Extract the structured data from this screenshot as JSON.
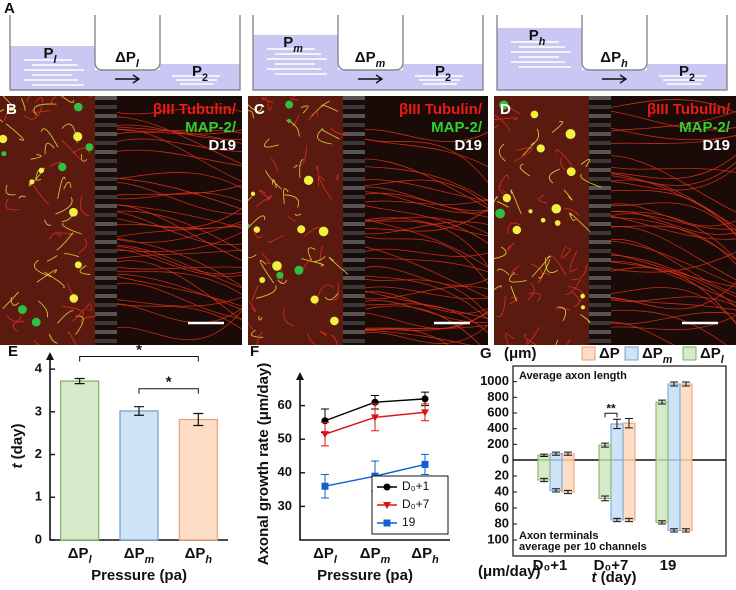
{
  "panel_labels": [
    "A",
    "B",
    "C",
    "D",
    "E",
    "F",
    "G"
  ],
  "diagrams": [
    {
      "p": "Pl",
      "dp": "ΔPl",
      "p2": "P2"
    },
    {
      "p": "Pm",
      "dp": "ΔPm",
      "p2": "P2"
    },
    {
      "p": "Ph",
      "dp": "ΔPh",
      "p2": "P2"
    }
  ],
  "images": [
    {
      "stain1": "βIII Tubulin/",
      "stain2": "MAP-2/",
      "day": "D19"
    },
    {
      "stain1": "βIII Tubulin/",
      "stain2": "MAP-2/",
      "day": "D19"
    },
    {
      "stain1": "βIII Tubulin/",
      "stain2": "MAP-2/",
      "day": "D19"
    }
  ],
  "chart_data": [
    {
      "type": "bar",
      "categories": [
        "ΔPl",
        "ΔPm",
        "ΔPh"
      ],
      "values": [
        3.72,
        3.02,
        2.82
      ],
      "errors": [
        0.06,
        0.1,
        0.14
      ],
      "colors": [
        "#d6e9c9",
        "#cfe3f7",
        "#fdddc5"
      ],
      "edge_colors": [
        "#7fae63",
        "#6fa0d0",
        "#e8a070"
      ],
      "ylim": [
        0,
        4.4
      ],
      "yticks": [
        0,
        1,
        2,
        3,
        4
      ],
      "ylabel": "t (day)",
      "xlabel": "Pressure (pa)",
      "annotations": [
        {
          "text": "*",
          "from": 0,
          "to": 2
        },
        {
          "text": "*",
          "from": 1,
          "to": 2
        }
      ]
    },
    {
      "type": "line",
      "categories": [
        "ΔPl",
        "ΔPm",
        "ΔPh"
      ],
      "series": [
        {
          "name": "D₀+1",
          "color": "#000000",
          "marker": "circle",
          "values": [
            55.5,
            61,
            62
          ],
          "errors": [
            3.5,
            2,
            2
          ]
        },
        {
          "name": "D₀+7",
          "color": "#e01010",
          "marker": "triangle",
          "values": [
            51.5,
            56.5,
            58
          ],
          "errors": [
            3.5,
            4,
            2.5
          ]
        },
        {
          "name": "19",
          "color": "#1060d0",
          "marker": "square",
          "values": [
            36,
            39,
            42.5
          ],
          "errors": [
            3.5,
            4.5,
            3
          ]
        }
      ],
      "ylim": [
        20,
        70
      ],
      "yticks": [
        30,
        40,
        50,
        60
      ],
      "ylabel": "Axonal growth rate (μm/day)",
      "xlabel": "Pressure (pa)",
      "legend": "lower right"
    },
    {
      "type": "butterfly",
      "categories": [
        "D₀+1",
        "D₀+7",
        "19"
      ],
      "series": [
        {
          "name": "ΔP",
          "color": "#fdddc5",
          "edge": "#e8a070",
          "values": [
            80,
            470,
            970
          ],
          "errors": [
            20,
            60,
            25
          ],
          "terminals": [
            40,
            75,
            88
          ],
          "terminal_errors": [
            2,
            2,
            2
          ]
        },
        {
          "name": "ΔPm",
          "color": "#cfe3f7",
          "edge": "#6fa0d0",
          "values": [
            80,
            460,
            970
          ],
          "errors": [
            20,
            60,
            25
          ],
          "terminals": [
            38,
            75,
            88
          ],
          "terminal_errors": [
            2,
            2,
            2
          ]
        },
        {
          "name": "ΔPl",
          "color": "#d6e9c9",
          "edge": "#7fae63",
          "values": [
            60,
            190,
            740
          ],
          "errors": [
            15,
            25,
            25
          ],
          "terminals": [
            25,
            48,
            78
          ],
          "terminal_errors": [
            2,
            3,
            2
          ]
        }
      ],
      "ylim": [
        0,
        1200
      ],
      "yticks": [
        0,
        200,
        400,
        600,
        800,
        1000
      ],
      "y2lim": [
        0,
        120
      ],
      "y2ticks": [
        20,
        40,
        60,
        80,
        100
      ],
      "ylabel": "(μm)",
      "y2label": "(μm/day)",
      "xlabel": "t (day)",
      "top_note": "Average axon length",
      "bottom_note": [
        "Axon terminals",
        "average per 10 channels"
      ],
      "significance": "**"
    }
  ]
}
